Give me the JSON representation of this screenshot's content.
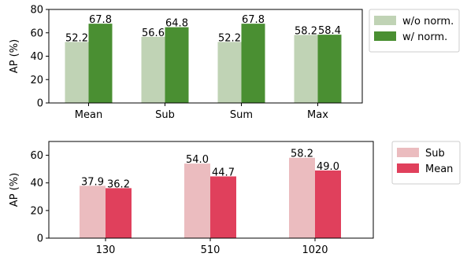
{
  "chart_data": [
    {
      "type": "bar",
      "categories": [
        "Mean",
        "Sub",
        "Sum",
        "Max"
      ],
      "series": [
        {
          "name": "w/o norm.",
          "values": [
            52.2,
            56.6,
            52.2,
            58.2
          ],
          "color": "#c0d3b5"
        },
        {
          "name": "w/ norm.",
          "values": [
            67.8,
            64.8,
            67.8,
            58.4
          ],
          "color": "#4a8f32"
        }
      ],
      "data_labels": [
        [
          "52.2",
          "56.6",
          "52.2",
          "58.2"
        ],
        [
          "67.8",
          "64.8",
          "67.8",
          "58.4"
        ]
      ],
      "xlabel": "",
      "ylabel": "AP (%)",
      "ylim": [
        0,
        80
      ],
      "yticks": [
        0,
        20,
        40,
        60,
        80
      ],
      "grid": false,
      "legend": "outside-top-right"
    },
    {
      "type": "bar",
      "categories": [
        "130",
        "510",
        "1020"
      ],
      "series": [
        {
          "name": "Sub",
          "values": [
            37.9,
            54.0,
            58.2
          ],
          "color": "#ebbcbf"
        },
        {
          "name": "Mean",
          "values": [
            36.2,
            44.7,
            49.0
          ],
          "color": "#e0405c"
        }
      ],
      "data_labels": [
        [
          "37.9",
          "54.0",
          "58.2"
        ],
        [
          "36.2",
          "44.7",
          "49.0"
        ]
      ],
      "xlabel": "",
      "ylabel": "AP (%)",
      "ylim": [
        0,
        70
      ],
      "yticks": [
        0,
        20,
        40,
        60
      ],
      "grid": false,
      "legend": "outside-top-right"
    }
  ]
}
